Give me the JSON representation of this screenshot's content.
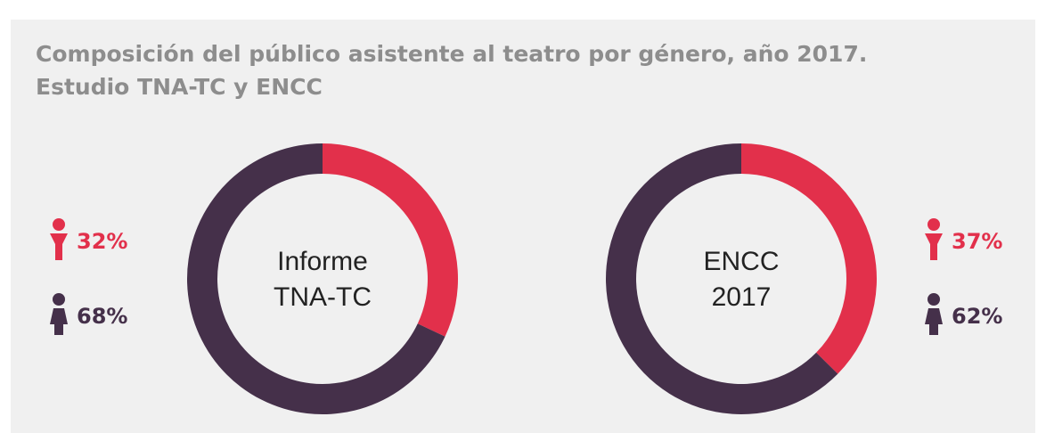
{
  "title": [
    "Composición del público asistente al teatro por género, año 2017.",
    "Estudio TNA-TC y ENCC"
  ],
  "chart_data": [
    {
      "type": "donut",
      "center_label": [
        "Informe",
        "TNA-TC"
      ],
      "values": [
        32,
        68
      ],
      "value_labels": [
        "32%",
        "68%"
      ],
      "colors": [
        "#e2304b",
        "#45304a"
      ],
      "legend": "left"
    },
    {
      "type": "donut",
      "center_label": [
        "ENCC",
        "2017"
      ],
      "values": [
        37,
        62
      ],
      "value_labels": [
        "37%",
        "62%"
      ],
      "colors": [
        "#e2304b",
        "#45304a"
      ],
      "legend": "right"
    }
  ]
}
